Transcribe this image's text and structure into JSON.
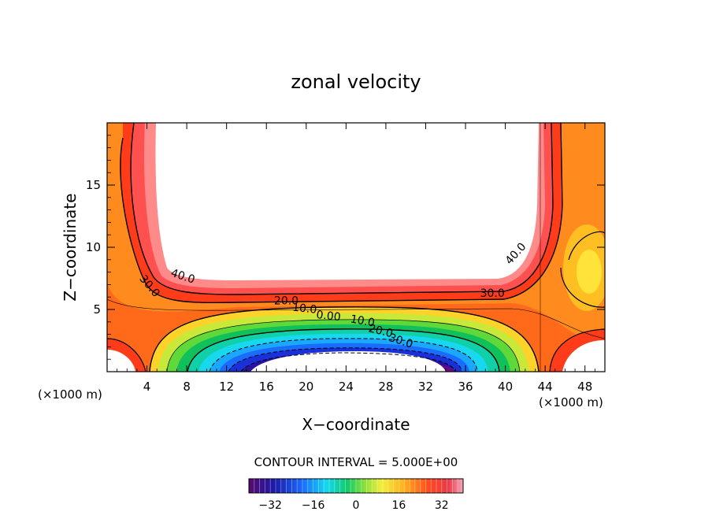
{
  "chart_data": {
    "type": "contour",
    "title": "zonal velocity",
    "xlabel": "X−coordinate",
    "ylabel": "Z−coordinate",
    "x_unit_left": "(×1000 m)",
    "x_unit_right": "(×1000 m)",
    "xlim": [
      0,
      50
    ],
    "ylim": [
      0,
      20
    ],
    "x_ticks": [
      4,
      8,
      12,
      16,
      20,
      24,
      28,
      32,
      36,
      40,
      44,
      48
    ],
    "y_ticks": [
      5,
      10,
      15
    ],
    "contour_interval_text": "CONTOUR INTERVAL = 5.000E+00",
    "contour_labels": [
      {
        "text": "40.0",
        "x": 7.5,
        "y": 7.4,
        "angle": 18
      },
      {
        "text": "30.0",
        "x": 4.0,
        "y": 6.7,
        "angle": 50
      },
      {
        "text": "40.0",
        "x": 41.3,
        "y": 9.3,
        "angle": -48
      },
      {
        "text": "30.0",
        "x": 38.7,
        "y": 6.0,
        "angle": 0
      },
      {
        "text": "20.0",
        "x": 18.0,
        "y": 5.4,
        "angle": 0
      },
      {
        "text": "10.0",
        "x": 19.8,
        "y": 4.8,
        "angle": 6
      },
      {
        "text": "0.00",
        "x": 22.2,
        "y": 4.2,
        "angle": 6
      },
      {
        "text": "10.0",
        "x": 25.6,
        "y": 3.8,
        "angle": 10
      },
      {
        "text": "20.0",
        "x": 27.4,
        "y": 3.0,
        "angle": 14
      },
      {
        "text": "30.0",
        "x": 29.4,
        "y": 2.2,
        "angle": 18
      }
    ],
    "colorbar": {
      "min": -40,
      "max": 40,
      "ticks": [
        "−32",
        "−16",
        "0",
        "16",
        "32"
      ],
      "tick_values": [
        -32,
        -16,
        0,
        16,
        32
      ]
    }
  }
}
